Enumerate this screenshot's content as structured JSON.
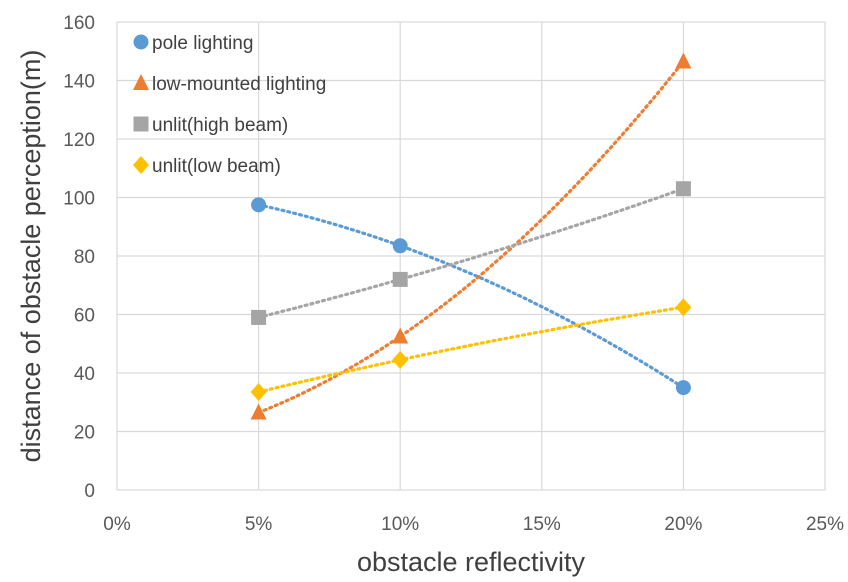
{
  "chart_data": {
    "type": "scatter",
    "title": "",
    "xlabel": "obstacle reflectivity",
    "ylabel": "distance of obstacle perception(m)",
    "xlim": [
      0,
      25
    ],
    "ylim": [
      0,
      160
    ],
    "xticks": [
      0,
      5,
      10,
      15,
      20,
      25
    ],
    "xtick_labels": [
      "0%",
      "5%",
      "10%",
      "15%",
      "20%",
      "25%"
    ],
    "yticks": [
      0,
      20,
      40,
      60,
      80,
      100,
      120,
      140,
      160
    ],
    "ytick_labels": [
      "0",
      "20",
      "40",
      "60",
      "80",
      "100",
      "120",
      "140",
      "160"
    ],
    "grid": true,
    "legend_position": "top-left",
    "trendline": "dotted",
    "series": [
      {
        "name": "pole lighting",
        "marker": "circle",
        "color": "#5B9BD5",
        "points": [
          {
            "x": 5,
            "y": 97.5
          },
          {
            "x": 10,
            "y": 83.5
          },
          {
            "x": 20,
            "y": 35
          }
        ]
      },
      {
        "name": "low-mounted lighting",
        "marker": "triangle",
        "color": "#ED7D31",
        "points": [
          {
            "x": 5,
            "y": 26.5
          },
          {
            "x": 10,
            "y": 52.5
          },
          {
            "x": 20,
            "y": 146.5
          }
        ]
      },
      {
        "name": "unlit(high beam)",
        "marker": "square",
        "color": "#A5A5A5",
        "points": [
          {
            "x": 5,
            "y": 59
          },
          {
            "x": 10,
            "y": 72
          },
          {
            "x": 20,
            "y": 103
          }
        ]
      },
      {
        "name": "unlit(low beam)",
        "marker": "diamond",
        "color": "#FFC000",
        "points": [
          {
            "x": 5,
            "y": 33.5
          },
          {
            "x": 10,
            "y": 44.5
          },
          {
            "x": 20,
            "y": 62.5
          }
        ]
      }
    ]
  }
}
